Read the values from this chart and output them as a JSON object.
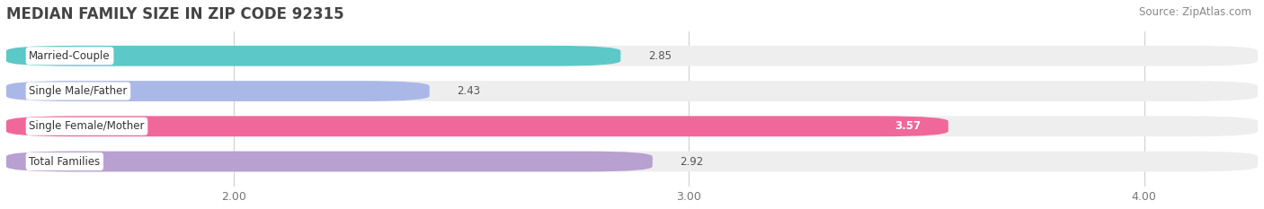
{
  "title": "MEDIAN FAMILY SIZE IN ZIP CODE 92315",
  "source": "Source: ZipAtlas.com",
  "categories": [
    "Married-Couple",
    "Single Male/Father",
    "Single Female/Mother",
    "Total Families"
  ],
  "values": [
    2.85,
    2.43,
    3.57,
    2.92
  ],
  "bar_colors": [
    "#5dc8c8",
    "#aab8e8",
    "#f0689a",
    "#b8a0d0"
  ],
  "bar_bg_color": "#eeeeee",
  "xlim_left": 1.5,
  "xlim_right": 4.25,
  "xticks": [
    2.0,
    3.0,
    4.0
  ],
  "xtick_labels": [
    "2.00",
    "3.00",
    "4.00"
  ],
  "bar_height": 0.58,
  "title_fontsize": 12,
  "source_fontsize": 8.5,
  "label_fontsize": 8.5,
  "value_fontsize": 8.5,
  "tick_fontsize": 9,
  "bg_color": "#ffffff",
  "grid_color": "#d0d0d0",
  "label_box_color": "#ffffff",
  "value_inside_color": "#ffffff",
  "value_outside_color": "#555555"
}
